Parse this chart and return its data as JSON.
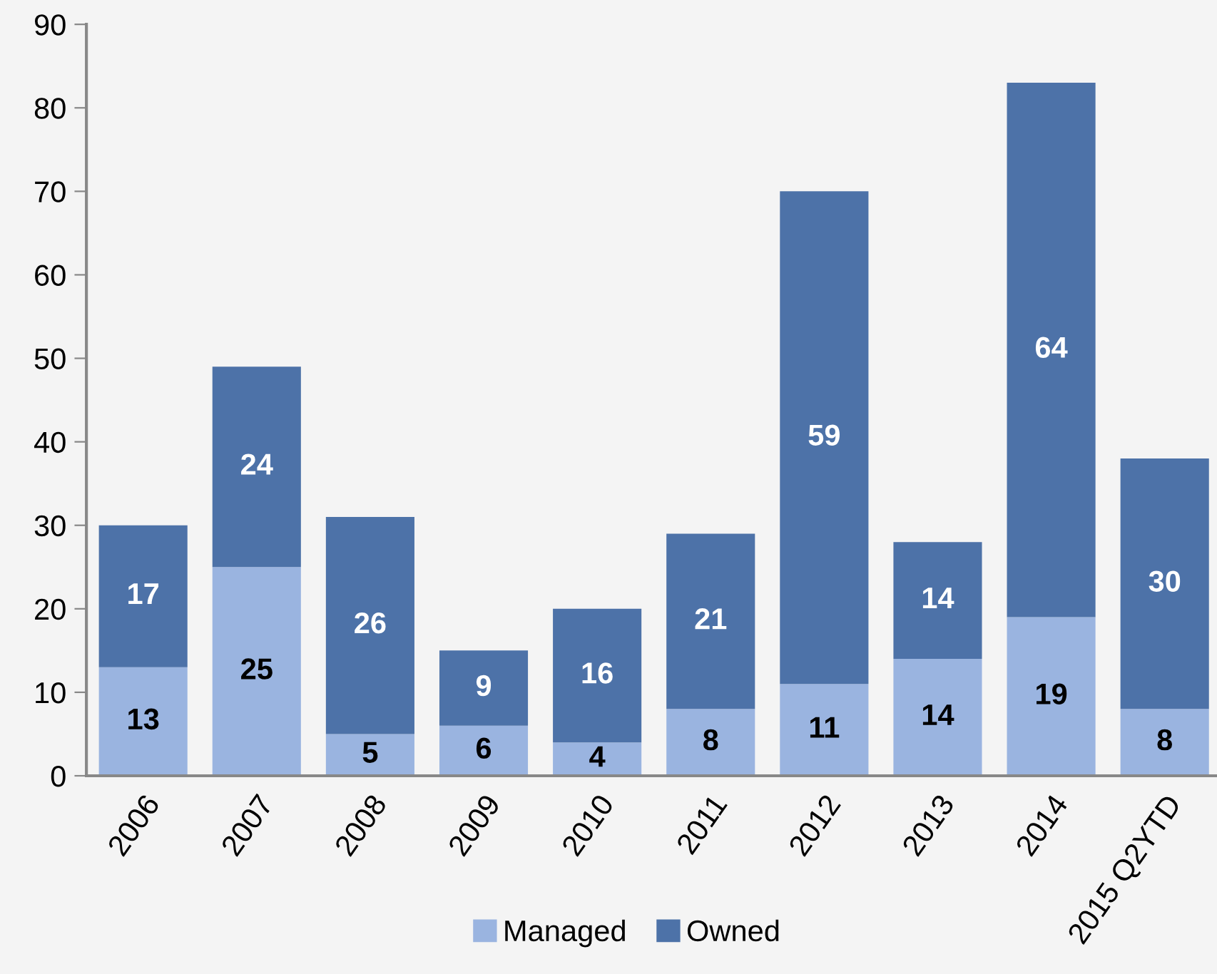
{
  "chart_data": {
    "type": "bar",
    "stacked": true,
    "categories": [
      "2006",
      "2007",
      "2008",
      "2009",
      "2010",
      "2011",
      "2012",
      "2013",
      "2014",
      "2015 Q2YTD"
    ],
    "series": [
      {
        "name": "Managed",
        "color": "#9ab4e0",
        "values": [
          13,
          25,
          5,
          6,
          4,
          8,
          11,
          14,
          19,
          8
        ]
      },
      {
        "name": "Owned",
        "color": "#4d72a8",
        "values": [
          17,
          24,
          26,
          9,
          16,
          21,
          59,
          14,
          64,
          30
        ]
      }
    ],
    "ylim": [
      0,
      90
    ],
    "yticks": [
      0,
      10,
      20,
      30,
      40,
      50,
      60,
      70,
      80,
      90
    ],
    "data_labels": true,
    "legend": "bottom",
    "grid": false
  }
}
